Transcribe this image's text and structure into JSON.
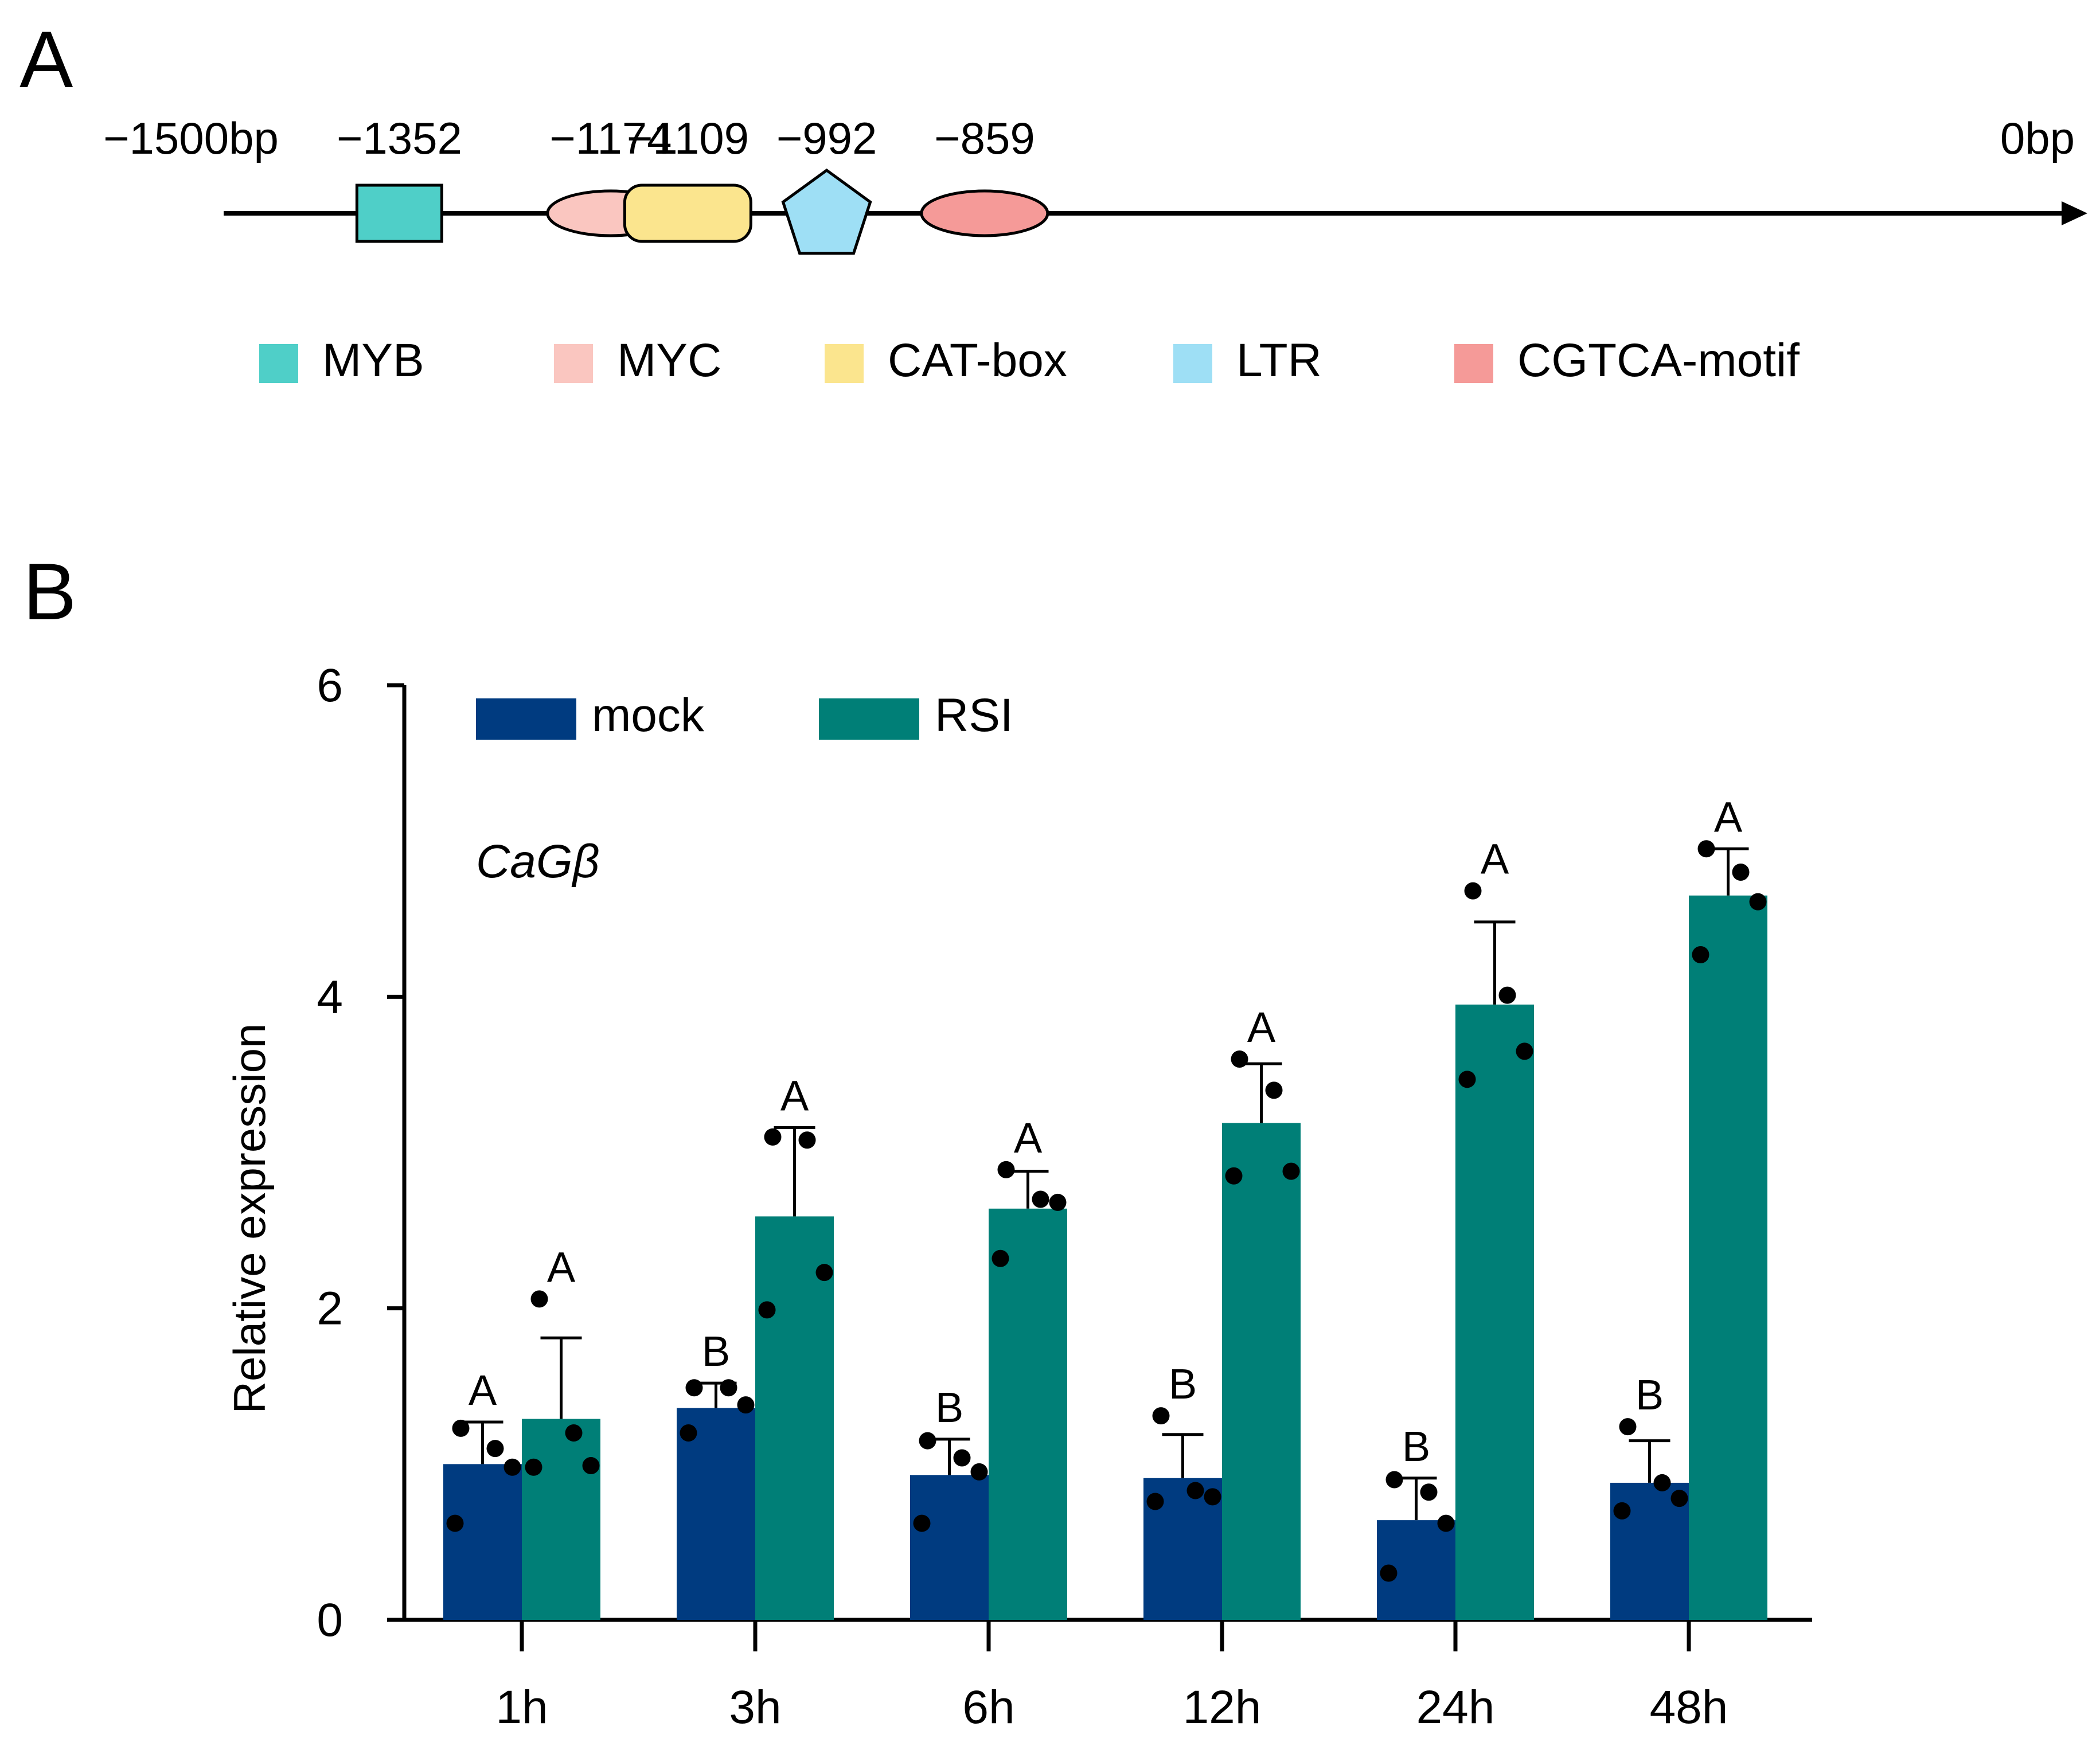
{
  "panel_a": {
    "letter": "A",
    "colors": {
      "line": "#000000",
      "MYB": "#4FCFC8",
      "MYC": "#FAC6C0",
      "CAT-box": "#FBE58E",
      "LTR": "#9EDFF5",
      "CGTCA-motif": "#F59A98"
    },
    "start_label": "−1500bp",
    "end_label": "0bp",
    "start_bp": -1500,
    "end_bp": 0,
    "elements": [
      {
        "name": "MYB",
        "pos_label": "−1352",
        "pos": -1352,
        "shape": "square",
        "color": "#4FCFC8"
      },
      {
        "name": "MYC",
        "pos_label": "−1174",
        "pos": -1174,
        "shape": "ellipse",
        "color": "#FAC6C0"
      },
      {
        "name": "CAT-box",
        "pos_label": "−1109",
        "pos": -1109,
        "shape": "rounded-rect",
        "color": "#FBE58E"
      },
      {
        "name": "LTR",
        "pos_label": "−992",
        "pos": -992,
        "shape": "pentagon",
        "color": "#9EDFF5"
      },
      {
        "name": "CGTCA-motif",
        "pos_label": "−859",
        "pos": -859,
        "shape": "ellipse",
        "color": "#F59A98"
      }
    ],
    "legend": [
      {
        "label": "MYB",
        "color": "#4FCFC8"
      },
      {
        "label": "MYC",
        "color": "#FAC6C0"
      },
      {
        "label": "CAT-box",
        "color": "#FBE58E"
      },
      {
        "label": "LTR",
        "color": "#9EDFF5"
      },
      {
        "label": "CGTCA-motif",
        "color": "#F59A98"
      }
    ]
  },
  "panel_b": {
    "letter": "B"
  },
  "chart_data": {
    "type": "bar",
    "title": "",
    "gene_label": "CaGβ",
    "xlabel": "",
    "ylabel": "Relative expression",
    "ylim": [
      0,
      6
    ],
    "yticks": [
      0,
      2,
      4,
      6
    ],
    "categories": [
      "1h",
      "3h",
      "6h",
      "12h",
      "24h",
      "48h"
    ],
    "legend_position": "top-left",
    "series": [
      {
        "name": "mock",
        "color": "#003B80",
        "values": [
          1.0,
          1.36,
          0.93,
          0.91,
          0.64,
          0.88
        ],
        "errors": [
          0.27,
          0.16,
          0.23,
          0.28,
          0.27,
          0.27
        ],
        "points": [
          [
            1.23,
            1.1,
            0.98,
            0.62
          ],
          [
            1.49,
            1.49,
            1.38,
            1.2
          ],
          [
            1.15,
            1.04,
            0.95,
            0.62
          ],
          [
            1.31,
            0.83,
            0.79,
            0.76
          ],
          [
            0.9,
            0.82,
            0.62,
            0.3
          ],
          [
            1.24,
            0.88,
            0.78,
            0.7
          ]
        ],
        "significance": [
          "A",
          "B",
          "B",
          "B",
          "B",
          "B"
        ]
      },
      {
        "name": "RSI",
        "color": "#007F77",
        "values": [
          1.29,
          2.59,
          2.64,
          3.19,
          3.95,
          4.65
        ],
        "errors": [
          0.52,
          0.57,
          0.24,
          0.38,
          0.53,
          0.3
        ],
        "points": [
          [
            2.06,
            1.2,
            0.99,
            0.98
          ],
          [
            3.1,
            3.08,
            2.23,
            1.99
          ],
          [
            2.89,
            2.7,
            2.68,
            2.32
          ],
          [
            3.6,
            3.4,
            2.88,
            2.85
          ],
          [
            4.68,
            4.01,
            3.65,
            3.47
          ],
          [
            4.95,
            4.8,
            4.61,
            4.27
          ]
        ],
        "significance": [
          "A",
          "A",
          "A",
          "A",
          "A",
          "A"
        ]
      }
    ]
  }
}
